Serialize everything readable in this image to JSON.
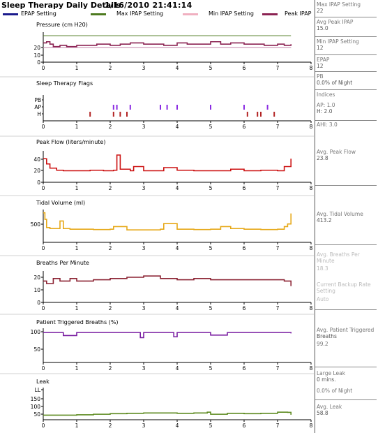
{
  "header": {
    "title": "Sleep Therapy Daily Details",
    "datetime": "1/16/2010  21:41:14"
  },
  "legend": [
    {
      "label": "EPAP Setting",
      "color": "#1a1a8c"
    },
    {
      "label": "Max IPAP Setting",
      "color": "#4d7a1f"
    },
    {
      "label": "Min IPAP Setting",
      "color": "#f0b0c0"
    },
    {
      "label": "Peak IPAP",
      "color": "#8b2252"
    }
  ],
  "sidebar": [
    {
      "label": "Max IPAP Setting",
      "value": "22"
    },
    {
      "label": "Avg Peak IPAP",
      "value": "15.0"
    },
    {
      "label": "Min IPAP Setting",
      "value": "12"
    },
    {
      "label": "EPAP",
      "value": "12"
    },
    {
      "label": "PB",
      "value": "0.0% of Night"
    },
    {
      "label": "Indices",
      "value": ""
    },
    {
      "label": "AP: 1.0",
      "value": "H: 2.0"
    },
    {
      "label": "AHI: 3.0",
      "value": ""
    },
    {
      "label": "Avg. Peak Flow",
      "value": "23.8"
    },
    {
      "label": "Avg. Tidal Volume",
      "value": "413.2"
    },
    {
      "label": "Avg. Breaths Per",
      "value": "Minute"
    },
    {
      "label": "18.3",
      "value": ""
    },
    {
      "label": "Current Backup Rate",
      "value": "Setting"
    },
    {
      "label": "Auto",
      "value": ""
    },
    {
      "label": "Avg. Patient Triggered",
      "value": "Breaths"
    },
    {
      "label": "99.2",
      "value": ""
    },
    {
      "label": "Large Leak",
      "value": "0 mins."
    },
    {
      "label": "0.0% of Night",
      "value": ""
    },
    {
      "label": "Avg. Leak",
      "value": "58.8"
    }
  ],
  "chart_data": [
    {
      "type": "line",
      "title": "Pressure (cm H20)",
      "xticks": [
        "0",
        "1",
        "2",
        "3",
        "4",
        "5",
        "6",
        "7",
        "8"
      ],
      "yticks": [
        "0",
        "10",
        "20"
      ],
      "ylim": [
        0,
        25
      ],
      "xlim": [
        0,
        8
      ],
      "series": [
        {
          "name": "EPAP Setting",
          "color": "#1a1a8c",
          "x": [
            0,
            7.4
          ],
          "y": [
            12,
            12
          ]
        },
        {
          "name": "Max IPAP Setting",
          "color": "#4d7a1f",
          "x": [
            0,
            7.4
          ],
          "y": [
            22,
            22
          ]
        },
        {
          "name": "Min IPAP Setting",
          "color": "#f0b0c0",
          "x": [
            0,
            7.4
          ],
          "y": [
            12,
            12
          ]
        },
        {
          "name": "Peak IPAP",
          "color": "#8b2252",
          "x": [
            0,
            0.1,
            0.2,
            0.3,
            0.5,
            0.7,
            1,
            1.3,
            1.6,
            2,
            2.3,
            2.6,
            3,
            3.3,
            3.6,
            4,
            4.3,
            4.6,
            5,
            5.3,
            5.6,
            6,
            6.3,
            6.6,
            7,
            7.2,
            7.4
          ],
          "y": [
            16,
            17,
            15,
            13,
            14,
            13,
            14,
            14,
            15,
            14,
            15,
            16,
            15,
            15,
            14,
            16,
            15,
            15,
            17,
            15,
            16,
            15,
            15,
            14,
            15,
            14,
            15
          ]
        }
      ]
    },
    {
      "type": "scatter",
      "title": "Sleep Therapy Flags",
      "xticks": [
        "0",
        "1",
        "2",
        "3",
        "4",
        "5",
        "6",
        "7",
        "8"
      ],
      "categories": [
        "PB",
        "AP",
        "H"
      ],
      "xlim": [
        0,
        8
      ],
      "series": [
        {
          "name": "AP",
          "color": "#8a2be2",
          "x": [
            2.1,
            2.2,
            2.6,
            3.5,
            3.7,
            4.0,
            5.0,
            6.0,
            6.7
          ],
          "category": "AP"
        },
        {
          "name": "H",
          "color": "#b22222",
          "x": [
            1.4,
            2.1,
            2.3,
            2.5,
            6.1,
            6.4,
            6.5,
            6.9
          ],
          "category": "H"
        }
      ]
    },
    {
      "type": "line",
      "title": "Peak Flow (liters/minute)",
      "xticks": [
        "0",
        "1",
        "2",
        "3",
        "4",
        "5",
        "6",
        "7",
        "8"
      ],
      "yticks": [
        "0",
        "20",
        "40"
      ],
      "ylim": [
        0,
        60
      ],
      "xlim": [
        0,
        8
      ],
      "series": [
        {
          "name": "Peak Flow",
          "color": "#cc1010",
          "x": [
            0,
            0.1,
            0.2,
            0.4,
            0.6,
            1,
            1.4,
            1.8,
            2.1,
            2.2,
            2.3,
            2.6,
            2.7,
            3,
            3.5,
            3.6,
            4,
            4.5,
            5,
            5.5,
            5.6,
            6,
            6.5,
            7,
            7.2,
            7.4
          ],
          "y": [
            45,
            35,
            27,
            23,
            22,
            22,
            23,
            22,
            23,
            52,
            25,
            22,
            30,
            22,
            22,
            28,
            23,
            22,
            22,
            22,
            25,
            22,
            23,
            22,
            30,
            45
          ]
        }
      ]
    },
    {
      "type": "line",
      "title": "Tidal Volume (ml)",
      "xticks": [
        "0",
        "1",
        "2",
        "3",
        "4",
        "5",
        "6",
        "7",
        "8"
      ],
      "yticks": [
        "500"
      ],
      "ylim": [
        0,
        1000
      ],
      "xlim": [
        0,
        8
      ],
      "series": [
        {
          "name": "Tidal Volume",
          "color": "#e6a817",
          "x": [
            0,
            0.05,
            0.1,
            0.2,
            0.5,
            0.6,
            0.8,
            1,
            1.5,
            2,
            2.1,
            2.5,
            3,
            3.5,
            3.6,
            4,
            4.5,
            5,
            5.3,
            5.6,
            6,
            6.5,
            7,
            7.2,
            7.3,
            7.4
          ],
          "y": [
            900,
            700,
            450,
            420,
            650,
            420,
            400,
            400,
            390,
            400,
            480,
            380,
            380,
            400,
            570,
            400,
            390,
            400,
            480,
            420,
            400,
            390,
            400,
            480,
            560,
            880
          ]
        }
      ]
    },
    {
      "type": "line",
      "title": "Breaths Per Minute",
      "xticks": [
        "0",
        "1",
        "2",
        "3",
        "4",
        "5",
        "6",
        "7",
        "8"
      ],
      "yticks": [
        "0",
        "10",
        "20"
      ],
      "ylim": [
        0,
        25
      ],
      "xlim": [
        0,
        8
      ],
      "series": [
        {
          "name": "Breaths Per Minute",
          "color": "#8b2232",
          "x": [
            0,
            0.1,
            0.3,
            0.5,
            0.8,
            1,
            1.5,
            2,
            2.5,
            3,
            3.5,
            4,
            4.5,
            5,
            5.5,
            6,
            6.5,
            7,
            7.2,
            7.4
          ],
          "y": [
            17,
            15,
            19,
            17,
            19,
            17,
            18,
            19,
            20,
            21,
            19,
            18,
            19,
            18,
            18,
            18,
            18,
            18,
            17,
            13
          ]
        }
      ]
    },
    {
      "type": "line",
      "title": "Patient Triggered Breaths (%)",
      "xticks": [
        "0",
        "1",
        "2",
        "3",
        "4",
        "5",
        "6",
        "7",
        "8"
      ],
      "yticks": [
        "50",
        "100"
      ],
      "ylim": [
        30,
        110
      ],
      "xlim": [
        0,
        8
      ],
      "series": [
        {
          "name": "Patient Triggered Breaths",
          "color": "#7a1fa2",
          "x": [
            0,
            0.5,
            0.6,
            1,
            1.5,
            2,
            2.8,
            2.9,
            3,
            3.5,
            3.9,
            4,
            4.5,
            5,
            5.5,
            6,
            6.5,
            7,
            7.4
          ],
          "y": [
            100,
            100,
            93,
            100,
            100,
            100,
            100,
            88,
            100,
            100,
            90,
            100,
            100,
            94,
            100,
            100,
            100,
            100,
            98
          ]
        }
      ]
    },
    {
      "type": "line",
      "title": "Leak",
      "xticks": [
        "0",
        "1",
        "2",
        "3",
        "4",
        "5",
        "6",
        "7",
        "8"
      ],
      "yticks": [
        "LL",
        "150",
        "100",
        "50"
      ],
      "ylim": [
        25,
        200
      ],
      "xlim": [
        0,
        8
      ],
      "series": [
        {
          "name": "Leak",
          "color": "#5c8a1f",
          "x": [
            0,
            0.5,
            1,
            1.5,
            2,
            2.5,
            3,
            3.5,
            4,
            4.5,
            4.9,
            5,
            5.5,
            6,
            6.5,
            7,
            7.3,
            7.4
          ],
          "y": [
            50,
            50,
            52,
            55,
            58,
            60,
            62,
            62,
            60,
            62,
            66,
            55,
            60,
            58,
            60,
            66,
            65,
            52
          ]
        }
      ]
    }
  ]
}
